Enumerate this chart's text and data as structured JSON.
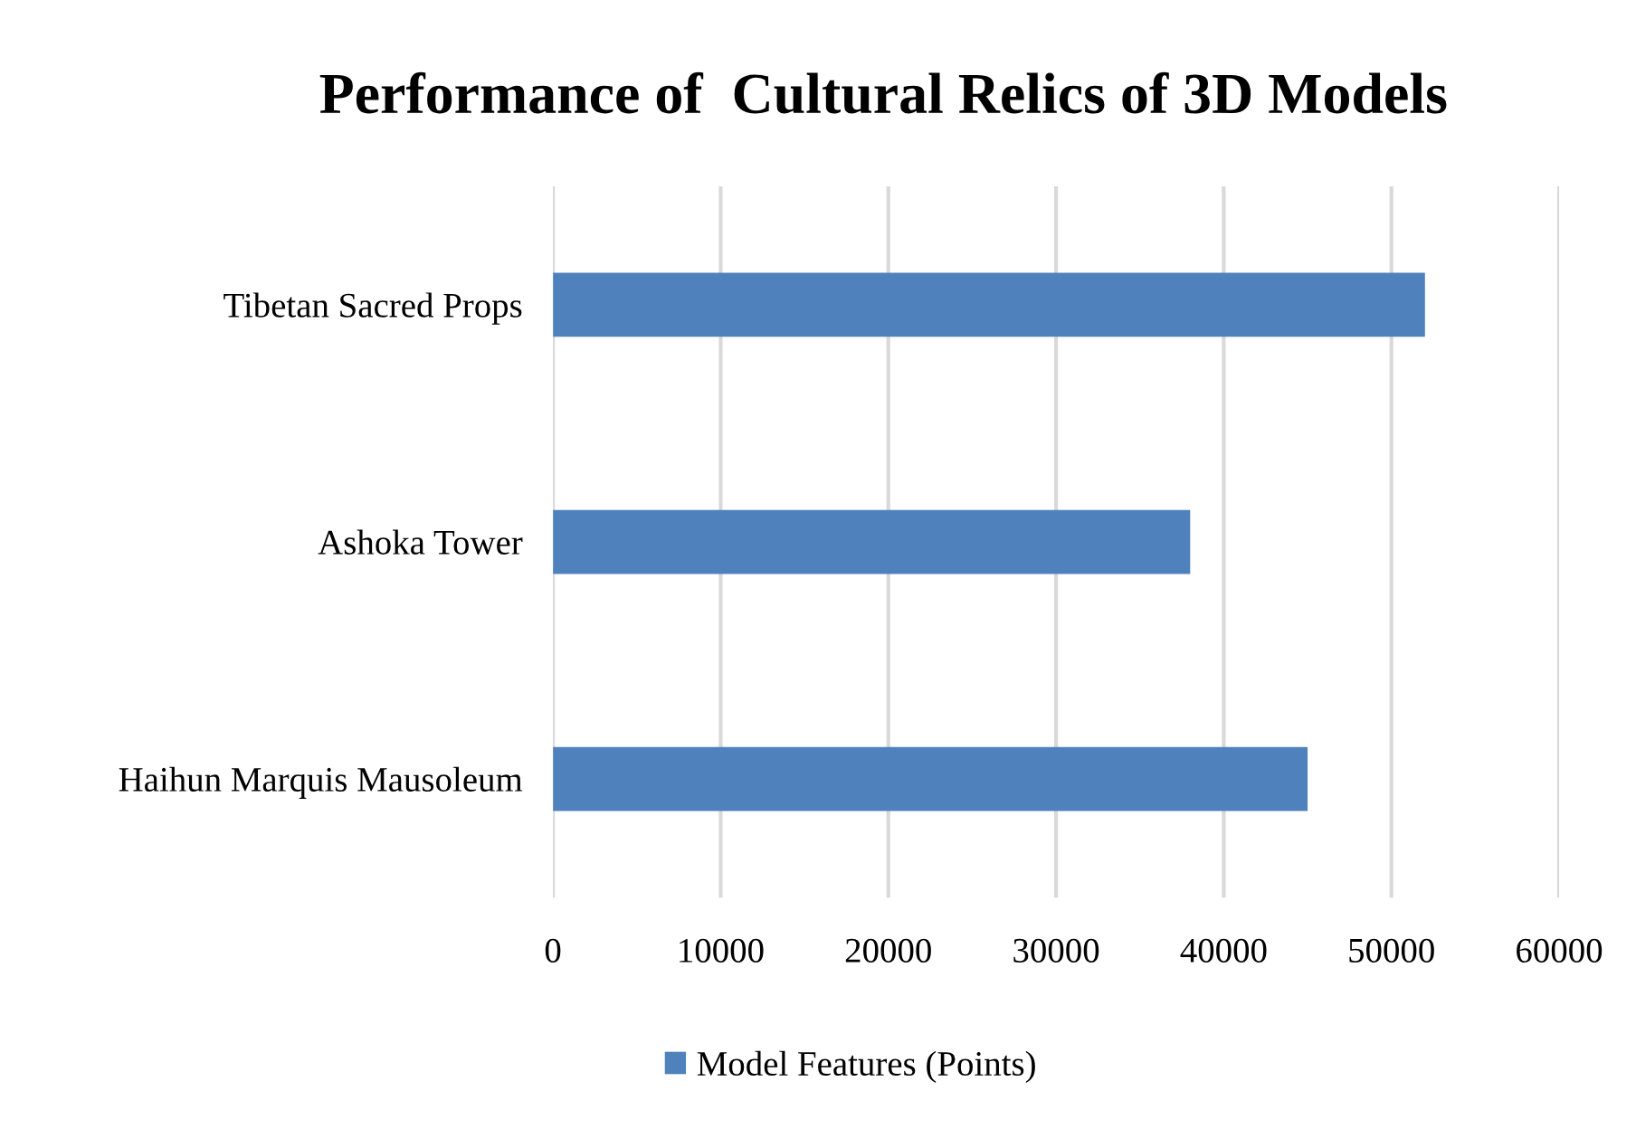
{
  "chart_data": {
    "type": "bar",
    "orientation": "horizontal",
    "title": "Performance of  Cultural Relics of 3D Models",
    "categories": [
      "Tibetan Sacred Props",
      "Ashoka Tower",
      "Haihun Marquis Mausoleum"
    ],
    "series": [
      {
        "name": "Model Features (Points)",
        "color": "#4f81bd",
        "values": [
          52000,
          38000,
          45000
        ]
      }
    ],
    "xlim": [
      0,
      60000
    ],
    "xticks": [
      0,
      10000,
      20000,
      30000,
      40000,
      50000,
      60000
    ],
    "grid": "x",
    "legend": "bottom"
  }
}
